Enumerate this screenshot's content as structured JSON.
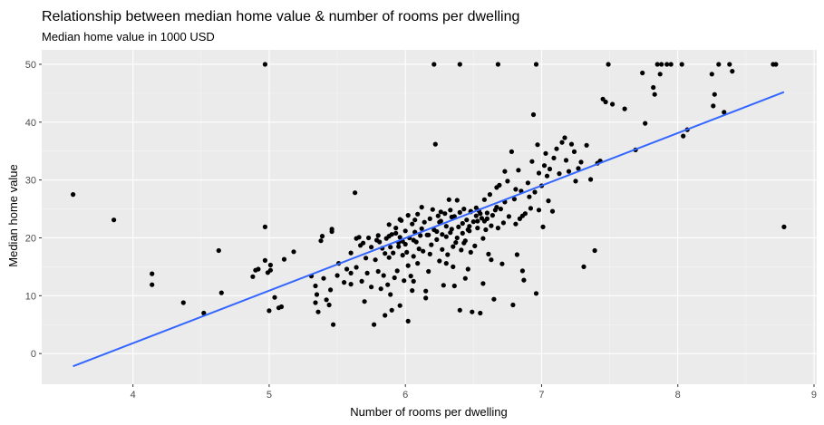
{
  "chart_data": {
    "type": "scatter",
    "title": "Relationship between median home value & number of rooms per dwelling",
    "subtitle": "Median home value in 1000 USD",
    "xlabel": "Number of rooms per dwelling",
    "ylabel": "Median home value",
    "xlim": [
      3.33,
      9.02
    ],
    "ylim": [
      -5.3,
      52.5
    ],
    "x_ticks": [
      4,
      5,
      6,
      7,
      8,
      9
    ],
    "y_ticks": [
      0,
      10,
      20,
      30,
      40,
      50
    ],
    "grid": true,
    "legend": "none",
    "colors": {
      "panel": "#ebebeb",
      "grid_major": "#ffffff",
      "grid_minor": "#f5f5f5",
      "points": "#000000",
      "trend": "#3366ff",
      "tick_text": "#4d4d4d",
      "tick_mark": "#333333"
    },
    "trend_line": {
      "x": [
        3.56,
        8.78
      ],
      "y": [
        -2.2,
        45.2
      ]
    },
    "points": [
      [
        3.56,
        27.5
      ],
      [
        3.86,
        23.1
      ],
      [
        4.14,
        13.8
      ],
      [
        4.14,
        11.9
      ],
      [
        4.37,
        8.8
      ],
      [
        4.52,
        7.0
      ],
      [
        4.63,
        17.8
      ],
      [
        4.65,
        10.5
      ],
      [
        4.88,
        13.3
      ],
      [
        4.9,
        14.4
      ],
      [
        4.92,
        14.6
      ],
      [
        4.97,
        21.9
      ],
      [
        4.97,
        16.1
      ],
      [
        4.97,
        50.0
      ],
      [
        4.99,
        14.0
      ],
      [
        5.0,
        7.4
      ],
      [
        5.01,
        15.3
      ],
      [
        5.01,
        14.4
      ],
      [
        5.04,
        9.7
      ],
      [
        5.07,
        7.9
      ],
      [
        5.09,
        8.1
      ],
      [
        5.11,
        16.3
      ],
      [
        5.18,
        17.6
      ],
      [
        5.31,
        13.4
      ],
      [
        5.34,
        8.8
      ],
      [
        5.34,
        11.7
      ],
      [
        5.35,
        10.2
      ],
      [
        5.36,
        7.2
      ],
      [
        5.38,
        19.5
      ],
      [
        5.39,
        20.3
      ],
      [
        5.4,
        13.0
      ],
      [
        5.42,
        9.3
      ],
      [
        5.44,
        8.4
      ],
      [
        5.45,
        11.0
      ],
      [
        5.46,
        21.1
      ],
      [
        5.47,
        5.0
      ],
      [
        5.5,
        13.5
      ],
      [
        5.51,
        15.6
      ],
      [
        5.55,
        12.3
      ],
      [
        5.57,
        14.6
      ],
      [
        5.6,
        12.0
      ],
      [
        5.6,
        17.4
      ],
      [
        5.63,
        27.8
      ],
      [
        5.64,
        19.9
      ],
      [
        5.66,
        20.1
      ],
      [
        5.67,
        18.7
      ],
      [
        5.68,
        12.5
      ],
      [
        5.69,
        19.1
      ],
      [
        5.7,
        9.0
      ],
      [
        5.71,
        16.5
      ],
      [
        5.72,
        13.9
      ],
      [
        5.73,
        20.0
      ],
      [
        5.75,
        18.4
      ],
      [
        5.77,
        5.0
      ],
      [
        5.78,
        16.2
      ],
      [
        5.79,
        19.6
      ],
      [
        5.8,
        14.2
      ],
      [
        5.8,
        20.4
      ],
      [
        5.82,
        11.2
      ],
      [
        5.83,
        18.2
      ],
      [
        5.84,
        13.5
      ],
      [
        5.85,
        17.3
      ],
      [
        5.86,
        19.9
      ],
      [
        5.87,
        11.9
      ],
      [
        5.88,
        20.3
      ],
      [
        5.88,
        16.6
      ],
      [
        5.89,
        10.2
      ],
      [
        5.9,
        20.6
      ],
      [
        5.91,
        17.4
      ],
      [
        5.92,
        13.1
      ],
      [
        5.93,
        21.7
      ],
      [
        5.93,
        20.8
      ],
      [
        5.94,
        14.3
      ],
      [
        5.95,
        18.5
      ],
      [
        5.96,
        8.3
      ],
      [
        5.96,
        20.1
      ],
      [
        5.97,
        23.0
      ],
      [
        5.98,
        19.4
      ],
      [
        5.99,
        12.6
      ],
      [
        6.0,
        21.2
      ],
      [
        6.01,
        17.5
      ],
      [
        6.02,
        15.2
      ],
      [
        6.03,
        20.0
      ],
      [
        6.04,
        13.4
      ],
      [
        6.05,
        22.4
      ],
      [
        6.06,
        16.8
      ],
      [
        6.06,
        12.5
      ],
      [
        6.07,
        21.0
      ],
      [
        6.08,
        19.3
      ],
      [
        6.09,
        24.1
      ],
      [
        6.1,
        18.1
      ],
      [
        6.11,
        20.4
      ],
      [
        6.12,
        25.3
      ],
      [
        6.13,
        17.7
      ],
      [
        6.14,
        22.7
      ],
      [
        6.15,
        10.8
      ],
      [
        6.16,
        20.5
      ],
      [
        6.17,
        14.2
      ],
      [
        6.18,
        23.3
      ],
      [
        6.19,
        18.8
      ],
      [
        6.2,
        24.9
      ],
      [
        6.21,
        21.4
      ],
      [
        6.22,
        36.2
      ],
      [
        6.23,
        19.7
      ],
      [
        6.24,
        23.8
      ],
      [
        6.25,
        16.0
      ],
      [
        6.26,
        22.9
      ],
      [
        6.27,
        20.6
      ],
      [
        6.28,
        11.8
      ],
      [
        6.29,
        24.2
      ],
      [
        6.3,
        22.0
      ],
      [
        6.31,
        17.1
      ],
      [
        6.32,
        26.6
      ],
      [
        6.33,
        20.9
      ],
      [
        6.34,
        21.5
      ],
      [
        6.35,
        15.0
      ],
      [
        6.36,
        23.7
      ],
      [
        6.37,
        19.2
      ],
      [
        6.38,
        26.5
      ],
      [
        6.39,
        21.9
      ],
      [
        6.4,
        24.4
      ],
      [
        6.41,
        17.9
      ],
      [
        6.42,
        22.5
      ],
      [
        6.43,
        25.0
      ],
      [
        6.44,
        19.5
      ],
      [
        6.45,
        23.1
      ],
      [
        6.46,
        14.6
      ],
      [
        6.47,
        21.2
      ],
      [
        6.48,
        24.5
      ],
      [
        6.49,
        7.2
      ],
      [
        6.5,
        22.8
      ],
      [
        6.51,
        18.6
      ],
      [
        6.52,
        25.2
      ],
      [
        6.53,
        21.7
      ],
      [
        6.54,
        24.7
      ],
      [
        6.55,
        7.0
      ],
      [
        6.56,
        23.4
      ],
      [
        6.57,
        19.9
      ],
      [
        6.58,
        26.6
      ],
      [
        6.59,
        21.4
      ],
      [
        6.6,
        24.3
      ],
      [
        6.61,
        17.2
      ],
      [
        6.62,
        27.5
      ],
      [
        6.63,
        22.1
      ],
      [
        6.64,
        23.9
      ],
      [
        6.65,
        9.4
      ],
      [
        6.66,
        24.8
      ],
      [
        6.67,
        28.7
      ],
      [
        6.68,
        21.7
      ],
      [
        6.69,
        29.1
      ],
      [
        6.7,
        25.0
      ],
      [
        6.72,
        22.6
      ],
      [
        6.73,
        31.5
      ],
      [
        6.75,
        29.8
      ],
      [
        6.76,
        23.7
      ],
      [
        6.78,
        34.9
      ],
      [
        6.8,
        26.7
      ],
      [
        6.81,
        28.4
      ],
      [
        6.82,
        17.1
      ],
      [
        6.83,
        31.7
      ],
      [
        6.84,
        23.3
      ],
      [
        6.85,
        28.1
      ],
      [
        6.87,
        12.7
      ],
      [
        6.88,
        24.2
      ],
      [
        6.9,
        29.5
      ],
      [
        6.92,
        25.1
      ],
      [
        6.93,
        33.2
      ],
      [
        6.94,
        41.3
      ],
      [
        6.95,
        27.9
      ],
      [
        6.96,
        10.4
      ],
      [
        6.97,
        36.1
      ],
      [
        6.98,
        31.2
      ],
      [
        6.98,
        24.8
      ],
      [
        7.0,
        29.0
      ],
      [
        7.01,
        21.9
      ],
      [
        7.02,
        32.5
      ],
      [
        7.03,
        34.6
      ],
      [
        7.04,
        30.7
      ],
      [
        7.05,
        26.4
      ],
      [
        7.06,
        31.9
      ],
      [
        7.08,
        24.6
      ],
      [
        7.09,
        33.8
      ],
      [
        7.11,
        35.4
      ],
      [
        7.13,
        31.1
      ],
      [
        7.15,
        36.5
      ],
      [
        7.17,
        37.3
      ],
      [
        7.18,
        33.4
      ],
      [
        7.2,
        31.5
      ],
      [
        7.22,
        36.2
      ],
      [
        7.24,
        34.9
      ],
      [
        7.25,
        29.8
      ],
      [
        7.27,
        32.0
      ],
      [
        7.29,
        33.1
      ],
      [
        7.31,
        15.0
      ],
      [
        7.33,
        36.0
      ],
      [
        7.36,
        30.1
      ],
      [
        7.39,
        17.8
      ],
      [
        7.41,
        32.9
      ],
      [
        7.43,
        33.3
      ],
      [
        7.45,
        44.0
      ],
      [
        7.47,
        43.5
      ],
      [
        7.49,
        50.0
      ],
      [
        7.52,
        43.1
      ],
      [
        7.61,
        42.3
      ],
      [
        7.69,
        35.2
      ],
      [
        7.74,
        48.5
      ],
      [
        7.76,
        39.8
      ],
      [
        7.82,
        46.0
      ],
      [
        7.83,
        44.8
      ],
      [
        7.85,
        50.0
      ],
      [
        7.87,
        48.3
      ],
      [
        7.88,
        50.0
      ],
      [
        7.92,
        50.0
      ],
      [
        7.95,
        50.0
      ],
      [
        8.03,
        50.0
      ],
      [
        8.04,
        37.6
      ],
      [
        8.07,
        38.7
      ],
      [
        8.25,
        48.3
      ],
      [
        8.26,
        42.8
      ],
      [
        8.27,
        44.8
      ],
      [
        8.3,
        50.0
      ],
      [
        8.34,
        41.7
      ],
      [
        8.38,
        50.0
      ],
      [
        8.4,
        48.8
      ],
      [
        8.7,
        50.0
      ],
      [
        8.72,
        50.0
      ],
      [
        8.78,
        21.9
      ],
      [
        5.6,
        13.9
      ],
      [
        5.75,
        11.5
      ],
      [
        5.9,
        7.5
      ],
      [
        6.05,
        10.9
      ],
      [
        6.15,
        9.6
      ],
      [
        6.36,
        11.7
      ],
      [
        6.44,
        13.0
      ],
      [
        6.57,
        12.1
      ],
      [
        6.71,
        15.5
      ],
      [
        6.79,
        8.4
      ],
      [
        6.86,
        14.3
      ],
      [
        5.85,
        6.6
      ],
      [
        6.4,
        7.5
      ],
      [
        6.02,
        5.6
      ],
      [
        5.46,
        21.5
      ],
      [
        5.64,
        14.9
      ],
      [
        6.3,
        15.6
      ],
      [
        6.48,
        17.5
      ],
      [
        6.63,
        16.2
      ],
      [
        6.4,
        50.0
      ],
      [
        6.68,
        50.0
      ],
      [
        6.96,
        50.0
      ],
      [
        6.21,
        50.0
      ],
      [
        6.02,
        23.9
      ],
      [
        6.12,
        21.6
      ],
      [
        6.25,
        22.7
      ],
      [
        6.33,
        24.8
      ],
      [
        6.42,
        20.8
      ],
      [
        6.47,
        22.0
      ],
      [
        6.52,
        23.8
      ],
      [
        6.55,
        24.2
      ],
      [
        6.58,
        22.9
      ],
      [
        5.95,
        19.2
      ],
      [
        6.0,
        18.9
      ],
      [
        6.06,
        19.6
      ],
      [
        6.17,
        20.5
      ],
      [
        6.23,
        21.1
      ],
      [
        6.3,
        20.2
      ],
      [
        6.38,
        20.0
      ],
      [
        6.46,
        21.4
      ],
      [
        6.53,
        22.9
      ],
      [
        5.81,
        19.3
      ],
      [
        5.89,
        18.4
      ],
      [
        5.98,
        17.0
      ],
      [
        6.09,
        15.6
      ],
      [
        6.18,
        17.2
      ],
      [
        6.27,
        18.0
      ],
      [
        6.35,
        18.5
      ],
      [
        6.43,
        19.1
      ],
      [
        5.88,
        22.3
      ],
      [
        5.96,
        23.2
      ],
      [
        6.07,
        23.1
      ],
      [
        6.26,
        24.5
      ],
      [
        6.34,
        23.6
      ],
      [
        6.48,
        24.6
      ],
      [
        6.6,
        23.3
      ],
      [
        6.67,
        25.3
      ],
      [
        6.73,
        26.2
      ],
      [
        6.81,
        22.4
      ],
      [
        6.86,
        23.8
      ],
      [
        6.91,
        27.1
      ]
    ]
  }
}
